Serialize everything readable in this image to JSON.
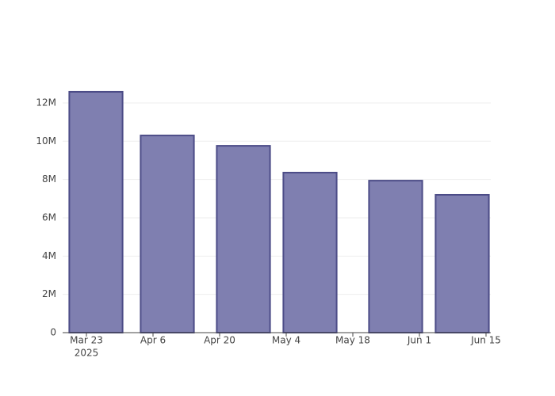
{
  "chart_data": {
    "type": "bar",
    "x": [
      "2025-03-25",
      "2025-04-09",
      "2025-04-25",
      "2025-05-09",
      "2025-05-27",
      "2025-06-10"
    ],
    "values": [
      12580000,
      10300000,
      9760000,
      8360000,
      7940000,
      7200000
    ],
    "color": "#7f7fb0",
    "edge_color": "#4c4c87",
    "xlim": [
      "2025-03-18",
      "2025-06-16"
    ],
    "xticks": [
      {
        "value": "2025-03-23",
        "label": "Mar 23",
        "year_label": "2025"
      },
      {
        "value": "2025-04-06",
        "label": "Apr 6"
      },
      {
        "value": "2025-04-20",
        "label": "Apr 20"
      },
      {
        "value": "2025-05-04",
        "label": "May 4"
      },
      {
        "value": "2025-05-18",
        "label": "May 18"
      },
      {
        "value": "2025-06-01",
        "label": "Jun 1"
      },
      {
        "value": "2025-06-15",
        "label": "Jun 15"
      }
    ],
    "ylim": [
      0,
      13240000
    ],
    "yticks": [
      0,
      {
        "value": 2000000,
        "label": "2M"
      },
      {
        "value": 4000000,
        "label": "4M"
      },
      {
        "value": 6000000,
        "label": "6M"
      },
      {
        "value": 8000000,
        "label": "8M"
      },
      {
        "value": 10000000,
        "label": "10M"
      },
      {
        "value": 12000000,
        "label": "12M"
      }
    ],
    "grid": true
  }
}
